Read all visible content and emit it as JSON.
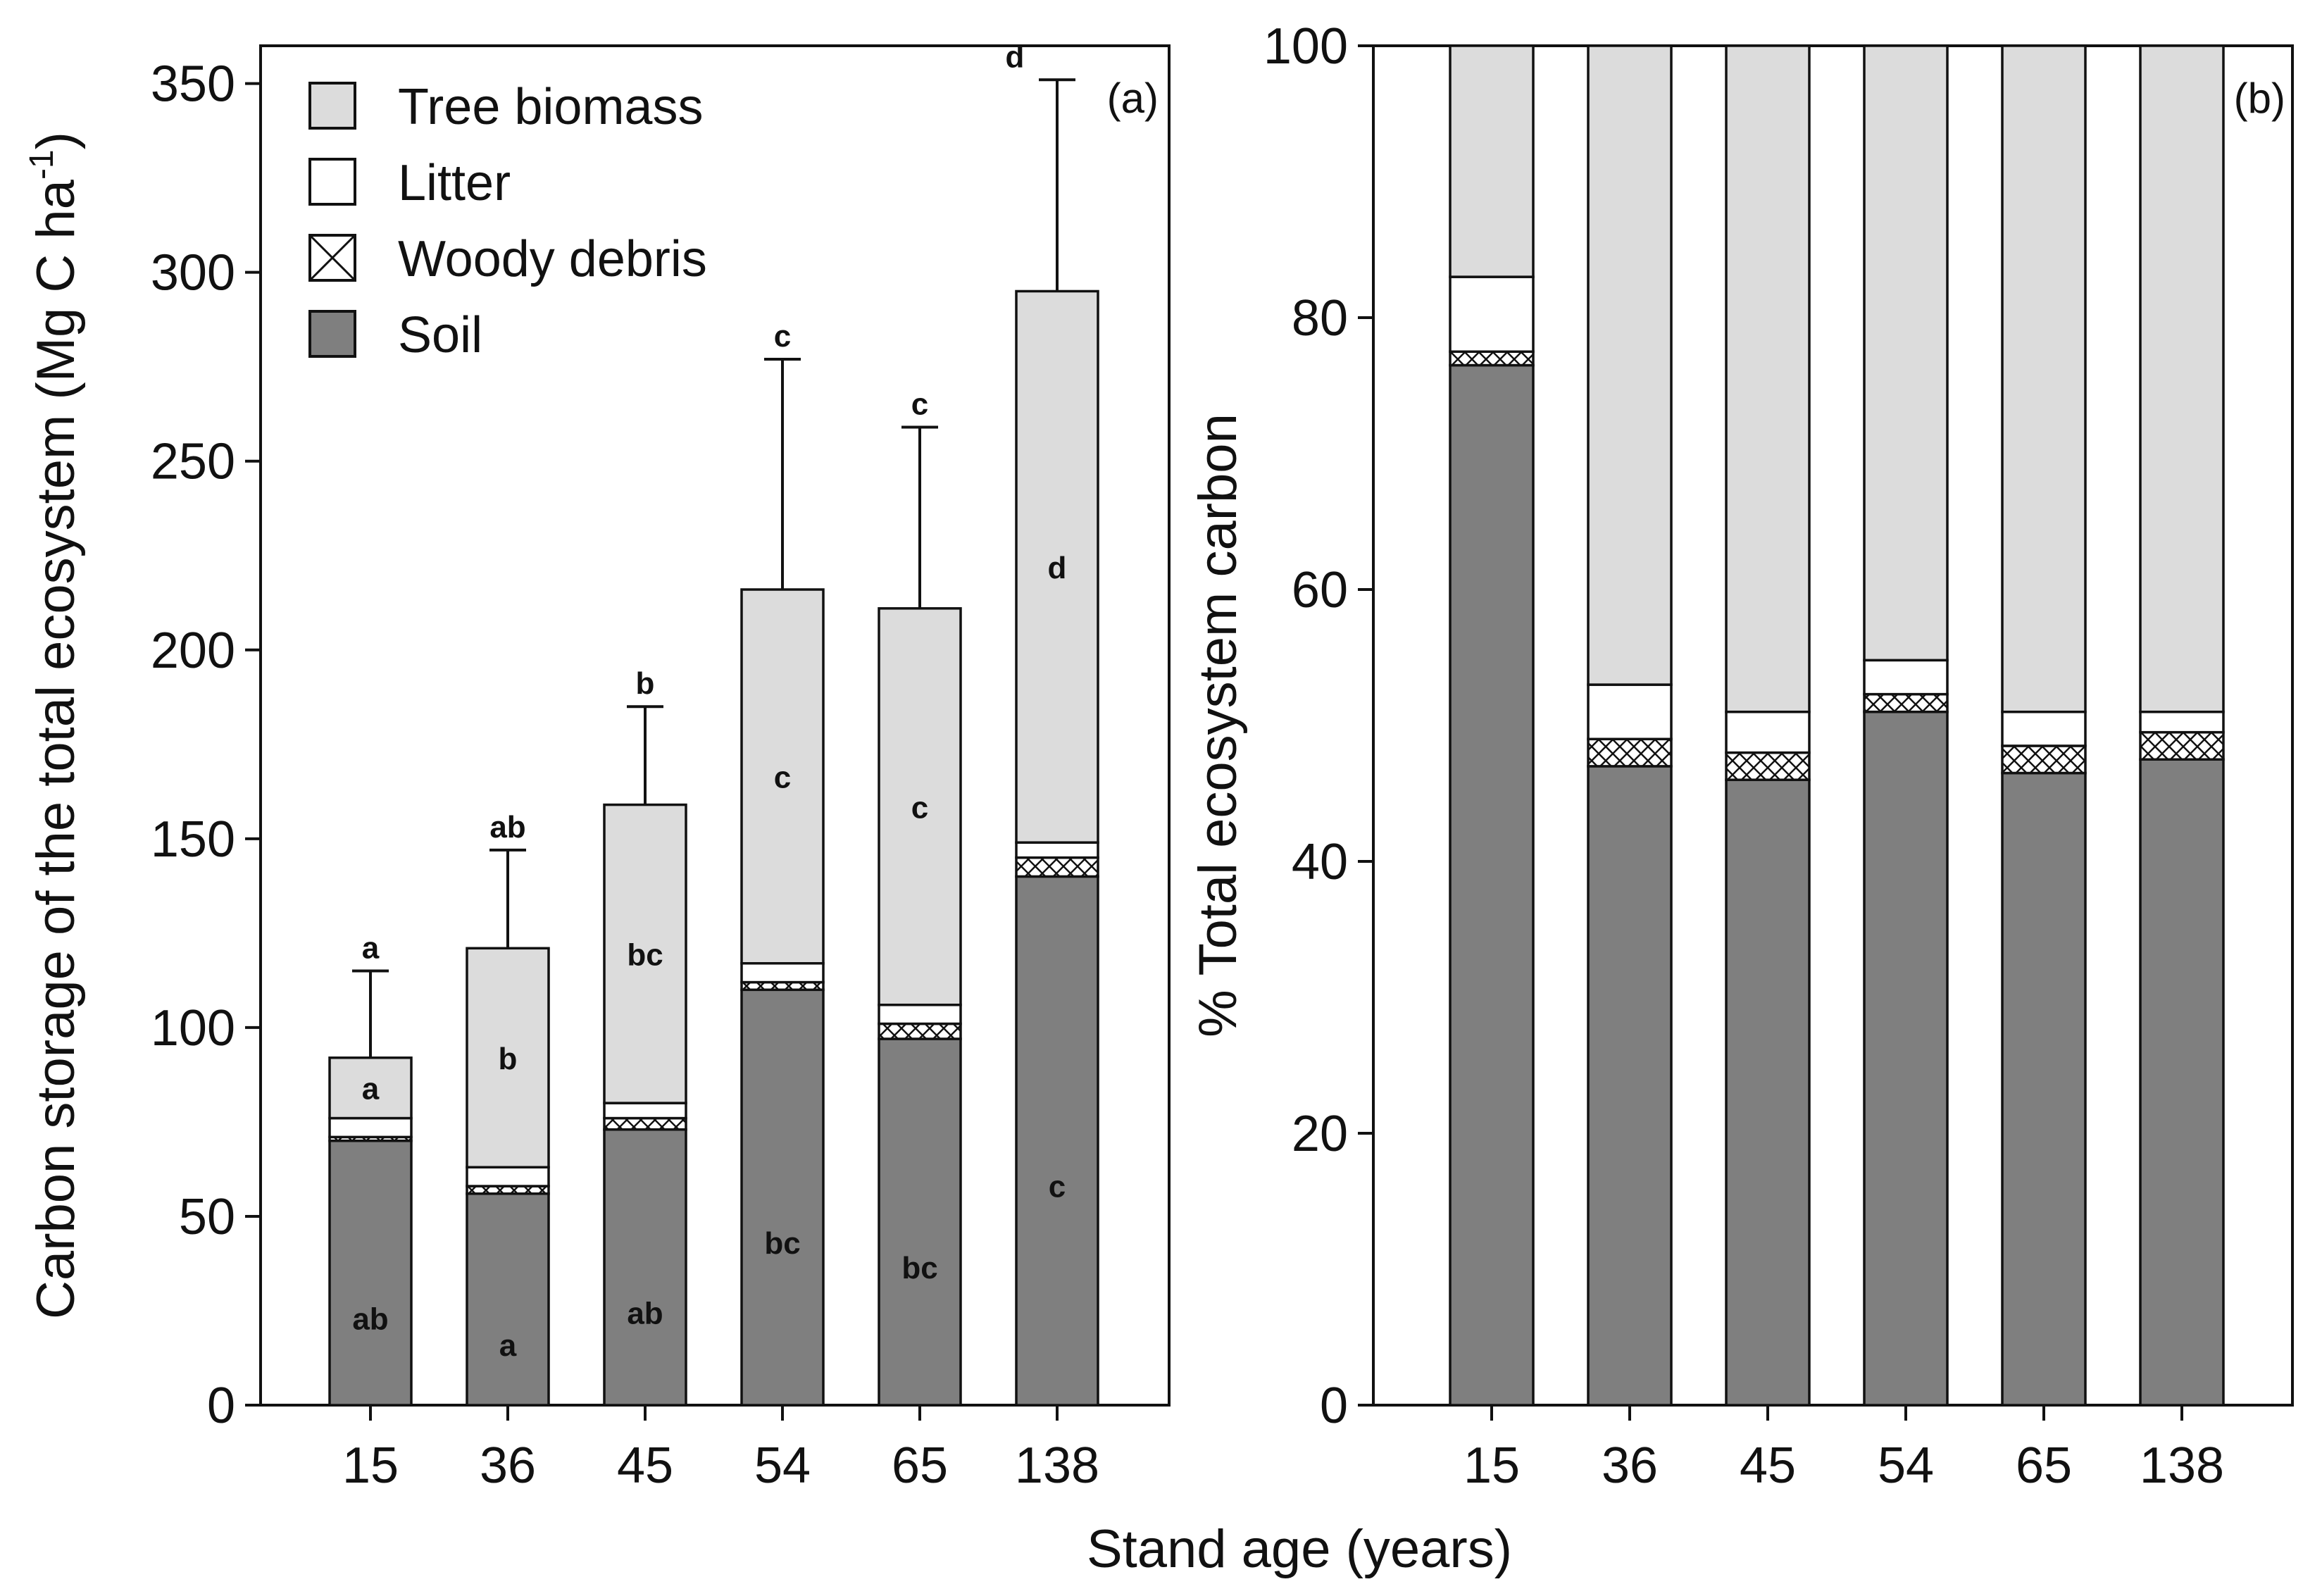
{
  "chart_data": {
    "type": "bar",
    "stacked": true,
    "shared_xlabel": "Stand age (years)",
    "categories": [
      "15",
      "36",
      "45",
      "54",
      "65",
      "138"
    ],
    "legend": [
      {
        "name": "Tree biomass",
        "pattern": "light-gray"
      },
      {
        "name": "Litter",
        "pattern": "white"
      },
      {
        "name": "Woody debris",
        "pattern": "crosshatch"
      },
      {
        "name": "Soil",
        "pattern": "dark-gray"
      }
    ],
    "colors": {
      "soil": "#7f7f7f",
      "woody": "#ffffff",
      "litter": "#ffffff",
      "tree": "#dcdcdc",
      "stroke": "#111111"
    },
    "panels": [
      {
        "id": "a",
        "panel_label": "(a)",
        "ylabel": "Carbon storage of the total ecosystem (Mg C ha",
        "ylabel_sup": "-1",
        "ylabel_close": ")",
        "ylim": [
          0,
          360
        ],
        "yticks": [
          0,
          50,
          100,
          150,
          200,
          250,
          300,
          350
        ],
        "series": [
          {
            "name": "Soil",
            "values": [
              70,
              56,
              73,
              110,
              97,
              140
            ]
          },
          {
            "name": "Woody debris",
            "values": [
              1,
              2,
              3,
              2,
              4,
              5
            ]
          },
          {
            "name": "Litter",
            "values": [
              5,
              5,
              4,
              5,
              5,
              4
            ]
          },
          {
            "name": "Tree biomass",
            "values": [
              16,
              58,
              79,
              99,
              105,
              146
            ]
          }
        ],
        "totals": [
          92,
          121,
          159,
          216,
          211,
          295
        ],
        "error_upper": [
          115,
          147,
          185,
          277,
          259,
          351
        ],
        "total_letters": [
          "a",
          "ab",
          "b",
          "c",
          "c",
          "d"
        ],
        "tree_letters": [
          "a",
          "b",
          "bc",
          "c",
          "c",
          "d"
        ],
        "soil_letters": [
          "ab",
          "a",
          "ab",
          "bc",
          "bc",
          "c"
        ]
      },
      {
        "id": "b",
        "panel_label": "(b)",
        "ylabel": "% Total ecosystem carbon",
        "ylim": [
          0,
          100
        ],
        "yticks": [
          0,
          20,
          40,
          60,
          80,
          100
        ],
        "series": [
          {
            "name": "Soil",
            "values": [
              76.5,
              47,
              46,
              51,
              46.5,
              47.5
            ]
          },
          {
            "name": "Woody debris",
            "values": [
              1,
              2,
              2,
              1.3,
              2,
              2
            ]
          },
          {
            "name": "Litter",
            "values": [
              5.5,
              4,
              3,
              2.5,
              2.5,
              1.5
            ]
          },
          {
            "name": "Tree biomass",
            "values": [
              17,
              47,
              49,
              45.2,
              49,
              49
            ]
          }
        ]
      }
    ]
  }
}
